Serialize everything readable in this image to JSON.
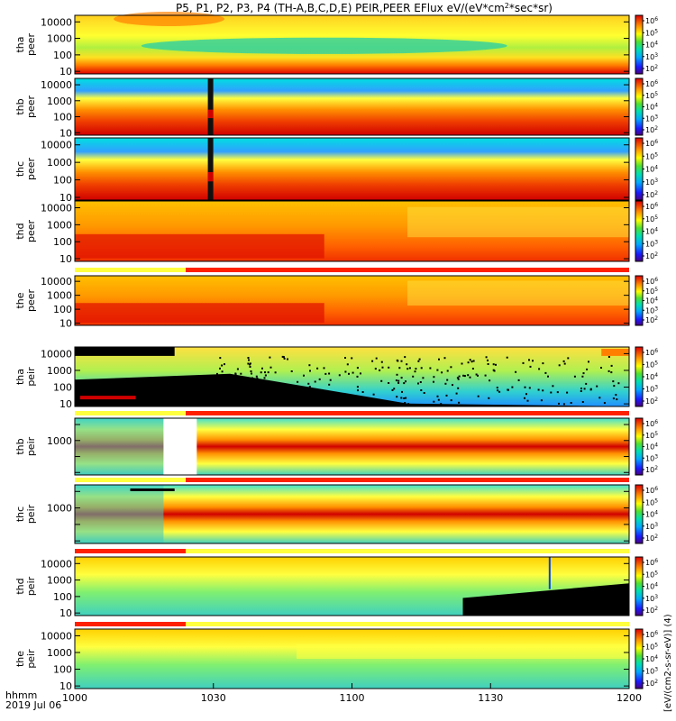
{
  "chart_data": {
    "type": "heatmap",
    "title": "P5, P1, P2, P3, P4 (TH-A,B,C,D,E) PEIR,PEER EFlux eV/(eV*cm^2*sec*sr)",
    "title_main": "P5, P1, P2, P3, P4 (TH-A,B,C,D,E) PEIR,PEER EFlux eV/(eV*cm",
    "title_sup": "2",
    "title_tail": "*sec*sr)",
    "x_axis": {
      "ticks": [
        "1000",
        "1030",
        "1100",
        "1130",
        "1200"
      ],
      "label_line1": "hhmm",
      "label_line2": "2019 Jul 06",
      "range_min": [
        0,
        120
      ]
    },
    "colorbar": {
      "scale": "log",
      "tick_base": "10",
      "tick_exponents": [
        "2",
        "3",
        "4",
        "5",
        "6"
      ],
      "units_label": "[eV/(cm2-s-sr-eV)] (4)"
    },
    "panels": [
      {
        "id": "tha-peer",
        "line1": "tha",
        "line2": "peer",
        "yscale": "log",
        "yticks": [
          "10",
          "100",
          "1000",
          "10000"
        ],
        "ylim": [
          7,
          25000
        ]
      },
      {
        "id": "thb-peer",
        "line1": "thb",
        "line2": "peer",
        "yscale": "log",
        "yticks": [
          "10",
          "100",
          "1000",
          "10000"
        ],
        "ylim": [
          7,
          25000
        ]
      },
      {
        "id": "thc-peer",
        "line1": "thc",
        "line2": "peer",
        "yscale": "log",
        "yticks": [
          "10",
          "100",
          "1000",
          "10000"
        ],
        "ylim": [
          7,
          25000
        ]
      },
      {
        "id": "thd-peer",
        "line1": "thd",
        "line2": "peer",
        "yscale": "log",
        "yticks": [
          "10",
          "100",
          "1000",
          "10000"
        ],
        "ylim": [
          7,
          25000
        ]
      },
      {
        "id": "the-peer",
        "line1": "the",
        "line2": "peer",
        "yscale": "log",
        "yticks": [
          "10",
          "100",
          "1000",
          "10000"
        ],
        "ylim": [
          7,
          25000
        ]
      },
      {
        "id": "tha-peir",
        "line1": "tha",
        "line2": "peir",
        "yscale": "log",
        "yticks": [
          "10",
          "100",
          "1000",
          "10000"
        ],
        "ylim": [
          7,
          25000
        ]
      },
      {
        "id": "thb-peir",
        "line1": "thb",
        "line2": "peir",
        "yscale": "log",
        "yticks": [
          "1000"
        ],
        "ylim": [
          7,
          25000
        ]
      },
      {
        "id": "thc-peir",
        "line1": "thc",
        "line2": "peir",
        "yscale": "log",
        "yticks": [
          "1000"
        ],
        "ylim": [
          7,
          25000
        ]
      },
      {
        "id": "thd-peir",
        "line1": "thd",
        "line2": "peir",
        "yscale": "log",
        "yticks": [
          "10",
          "100",
          "1000",
          "10000"
        ],
        "ylim": [
          7,
          25000
        ]
      },
      {
        "id": "the-peir",
        "line1": "the",
        "line2": "peir",
        "yscale": "log",
        "yticks": [
          "10",
          "100",
          "1000",
          "10000"
        ],
        "ylim": [
          7,
          25000
        ]
      }
    ]
  }
}
